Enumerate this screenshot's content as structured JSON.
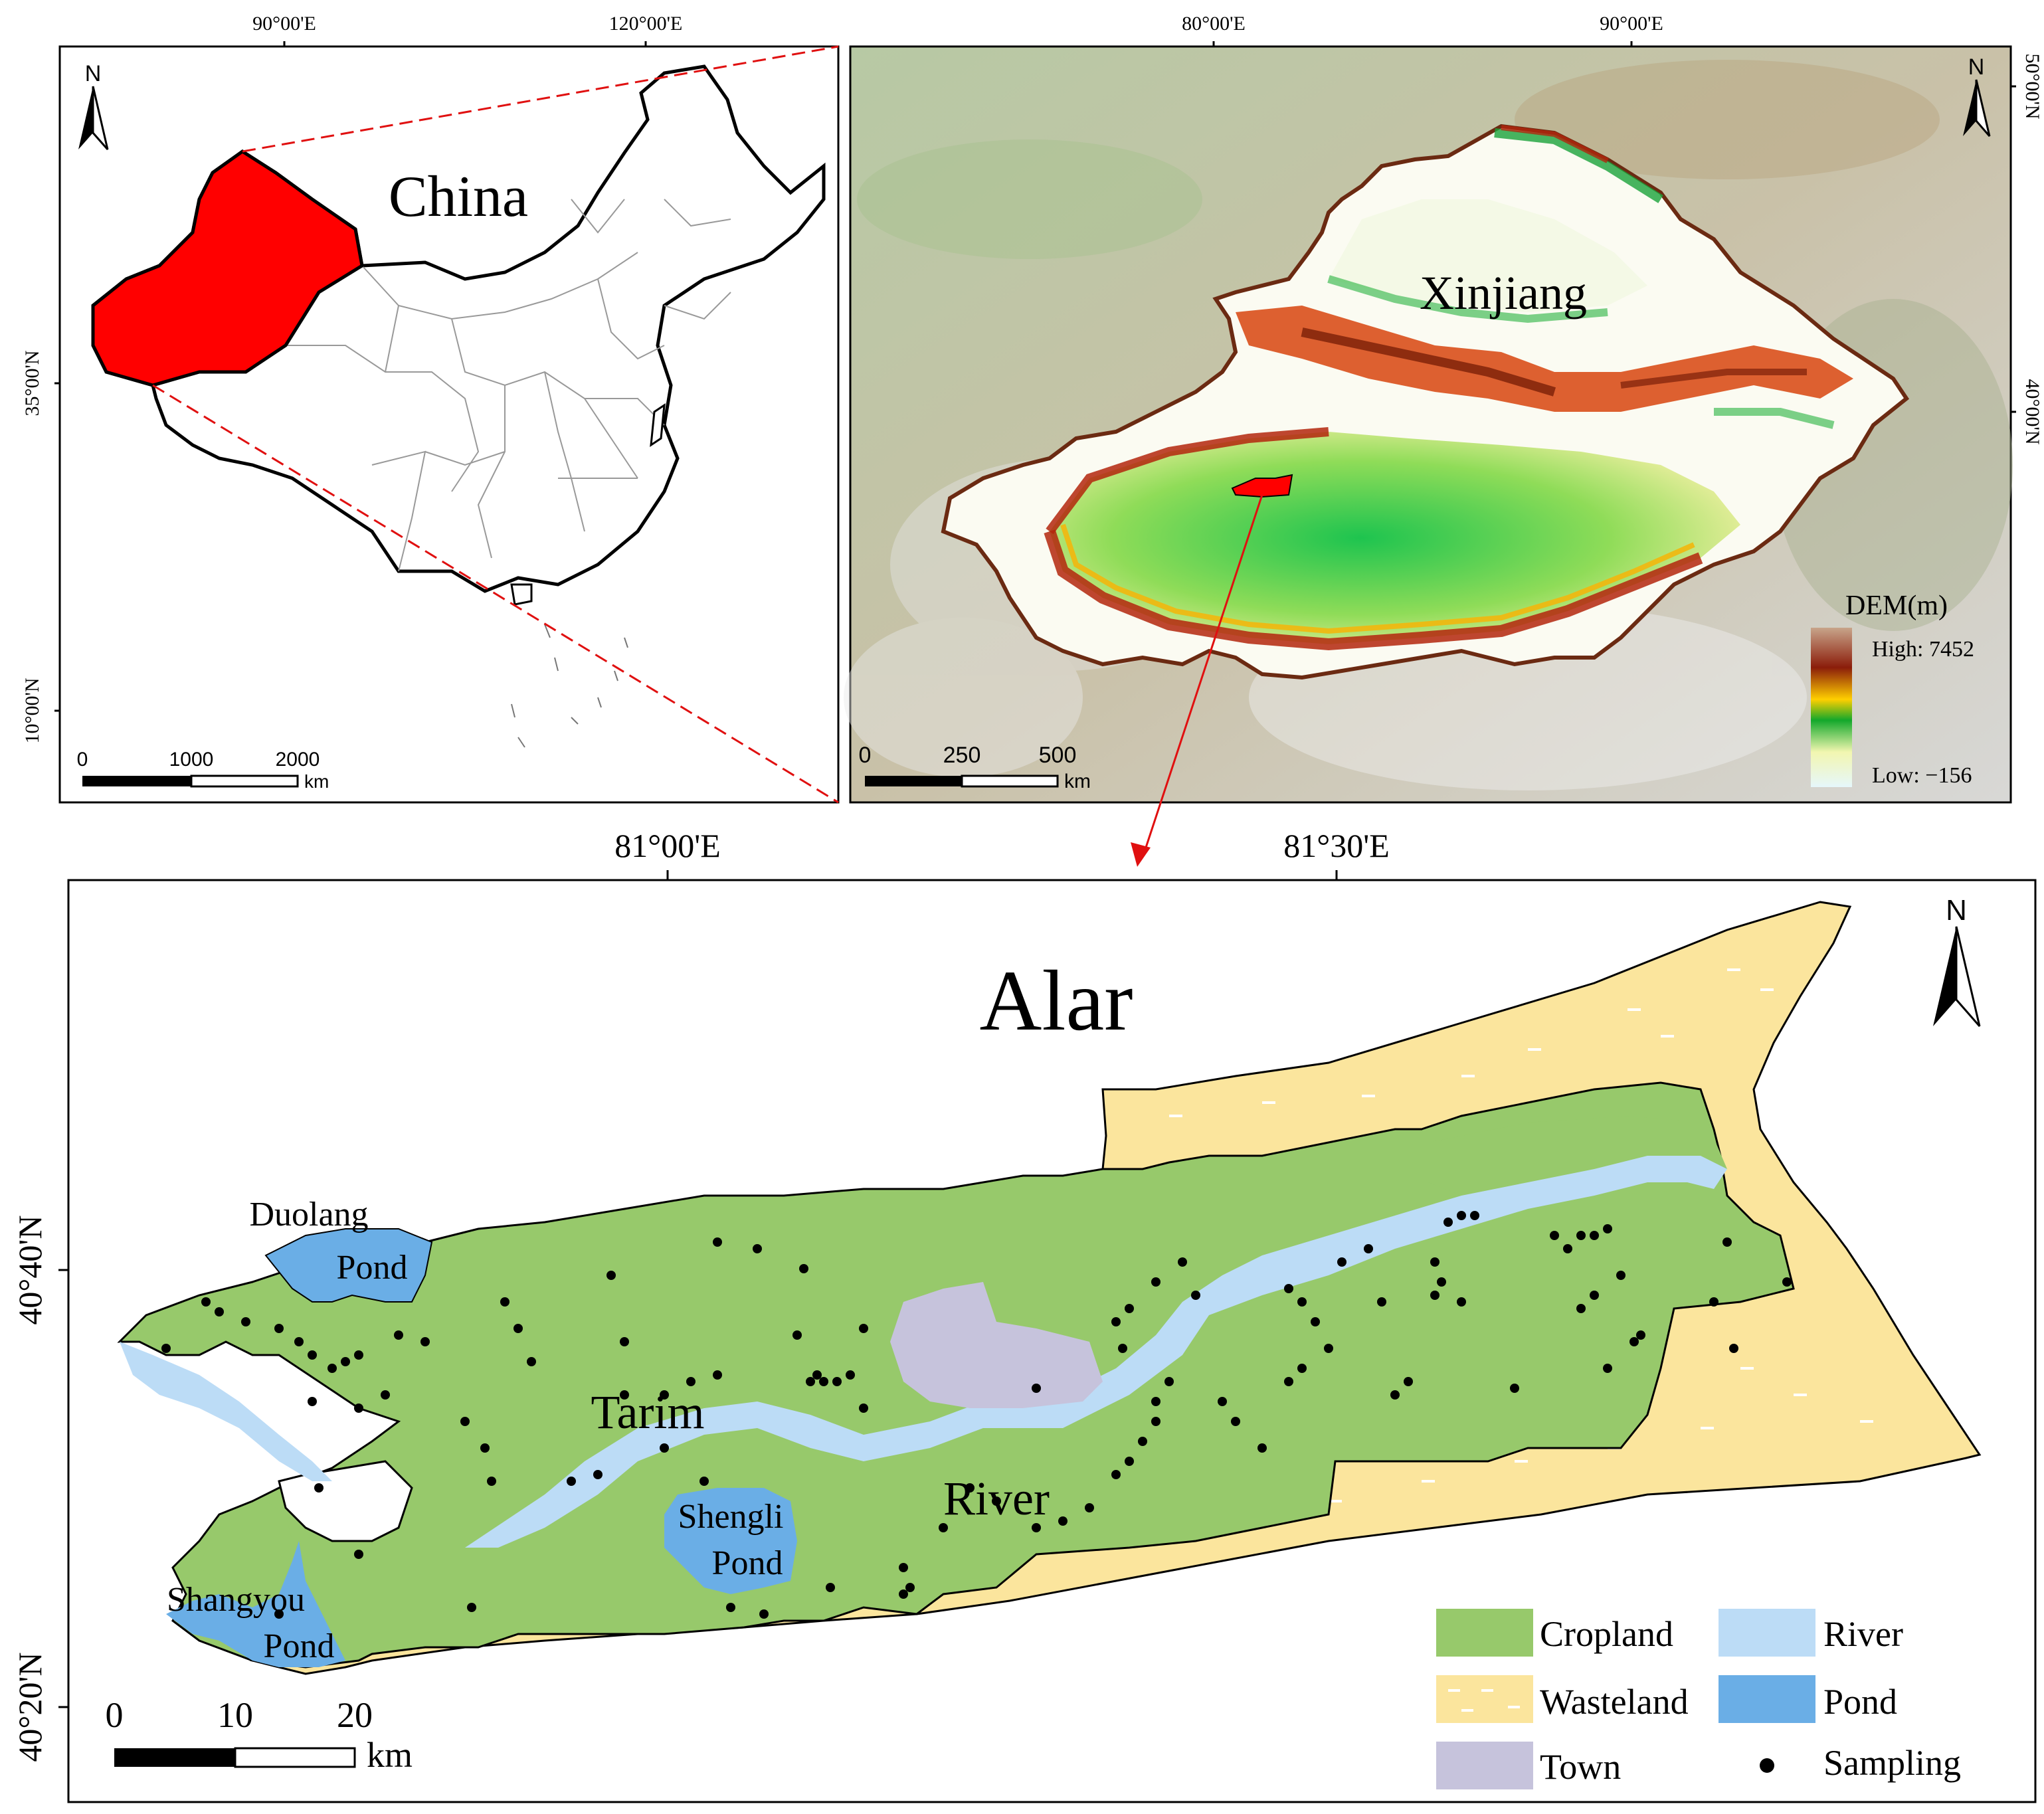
{
  "china_panel": {
    "title": "China",
    "lon_labels": [
      "90°00'E",
      "120°00'E"
    ],
    "lat_labels": [
      "35°00'N",
      "10°00'N"
    ],
    "scale": {
      "ticks": [
        "0",
        "1000",
        "2000"
      ],
      "unit": "km"
    },
    "north": "N"
  },
  "xinjiang_panel": {
    "title": "Xinjiang",
    "lon_labels": [
      "80°00'E",
      "90°00'E"
    ],
    "lat_labels": [
      "50°00'N",
      "40°00'N"
    ],
    "scale": {
      "ticks": [
        "0",
        "250",
        "500"
      ],
      "unit": "km"
    },
    "north": "N",
    "dem_legend": {
      "title": "DEM(m)",
      "high": "High: 7452",
      "low": "Low: −156"
    }
  },
  "alar_panel": {
    "title": "Alar",
    "lon_labels": [
      "81°00'E",
      "81°30'E"
    ],
    "lat_labels": [
      "40°40'N",
      "40°20'N"
    ],
    "scale": {
      "ticks": [
        "0",
        "10",
        "20"
      ],
      "unit": "km"
    },
    "north": "N",
    "place_labels": {
      "duolang_1": "Duolang",
      "duolang_2": "Pond",
      "shengli_1": "Shengli",
      "shengli_2": "Pond",
      "shangyou_1": "Shangyou",
      "shangyou_2": "Pond",
      "river_1": "Tarim",
      "river_2": "River"
    },
    "legend": [
      {
        "label": "Cropland",
        "color": "#97c96b"
      },
      {
        "label": "River",
        "color": "#bcdcf6"
      },
      {
        "label": "Wasteland",
        "color": "#fbe59d"
      },
      {
        "label": "Pond",
        "color": "#6aaee6"
      },
      {
        "label": "Town",
        "color": "#c6c3dc"
      },
      {
        "label": "Sampling",
        "color": "#000000"
      }
    ]
  },
  "colors": {
    "highlight": "#ff0000",
    "cropland": "#97c96b",
    "wasteland": "#fbe59d",
    "river": "#bcdcf6",
    "pond": "#6aaee6",
    "town": "#c6c3dc"
  }
}
